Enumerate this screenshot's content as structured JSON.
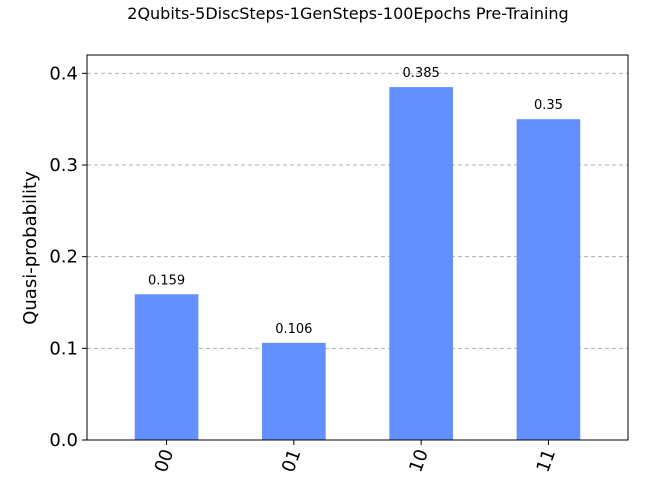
{
  "chart_data": {
    "type": "bar",
    "title": "2Qubits-5DiscSteps-1GenSteps-100Epochs Pre-Training",
    "xlabel": "",
    "ylabel": "Quasi-probability",
    "categories": [
      "00",
      "01",
      "10",
      "11"
    ],
    "values": [
      0.159,
      0.106,
      0.385,
      0.35
    ],
    "data_labels": [
      "0.159",
      "0.106",
      "0.385",
      "0.35"
    ],
    "ylim": [
      0,
      0.42
    ],
    "yticks": [
      0.0,
      0.1,
      0.2,
      0.3,
      0.4
    ],
    "ytick_labels": [
      "0.0",
      "0.1",
      "0.2",
      "0.3",
      "0.4"
    ],
    "grid": "horizontal dashed",
    "colors": {
      "bar": "#648fff",
      "grid": "#b0b0b0",
      "axis": "#000000"
    }
  }
}
